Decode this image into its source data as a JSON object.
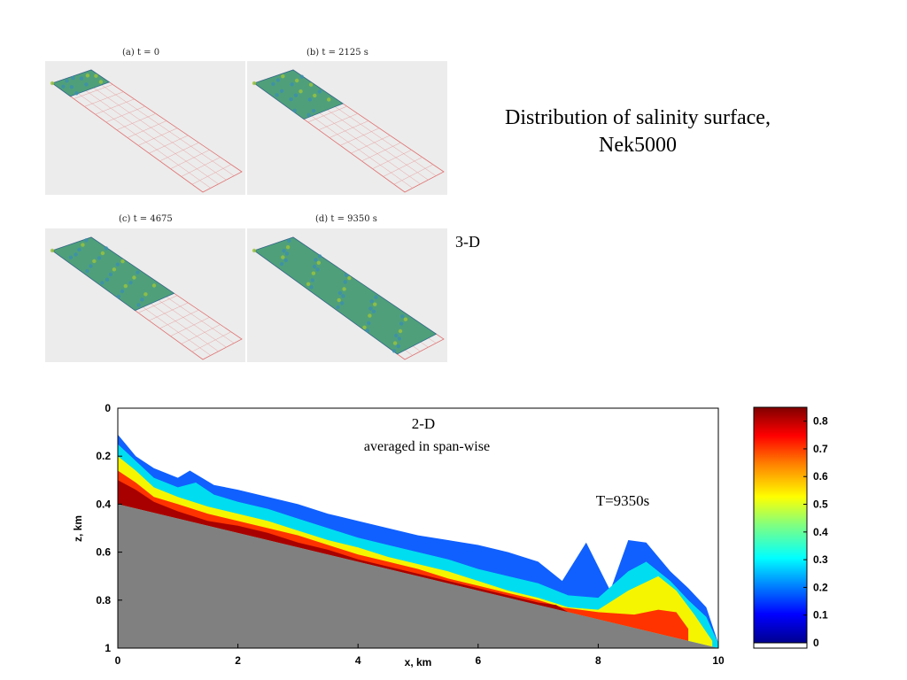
{
  "slide": {
    "title_line1": "Distribution of salinity surface,",
    "title_line2": "Nek5000",
    "label_3d": "3-D"
  },
  "panels": [
    {
      "label": "(a) t = 0",
      "fill_fraction": 0.12
    },
    {
      "label": "(b) t = 2125 s",
      "fill_fraction": 0.33
    },
    {
      "label": "(c) t = 4675",
      "fill_fraction": 0.55
    },
    {
      "label": "(d) t = 9350 s",
      "fill_fraction": 0.95
    }
  ],
  "chart_data": {
    "type": "heatmap",
    "title": "2-D",
    "subtitle": "averaged in span-wise",
    "annotation": "T=9350s",
    "xlabel": "x, km",
    "ylabel": "z, km",
    "xlim": [
      0,
      10
    ],
    "ylim": [
      0,
      1
    ],
    "y_inverted": true,
    "x_ticks": [
      "0",
      "2",
      "4",
      "6",
      "8",
      "10"
    ],
    "y_ticks": [
      "0",
      "0.2",
      "0.4",
      "0.6",
      "0.8",
      "1"
    ],
    "colorbar": {
      "range": [
        0,
        0.85
      ],
      "ticks": [
        "0",
        "0.1",
        "0.2",
        "0.3",
        "0.4",
        "0.5",
        "0.6",
        "0.7",
        "0.8"
      ],
      "colormap": "jet"
    },
    "bottom_slope": {
      "x": [
        0,
        10
      ],
      "z": [
        0.4,
        1.0
      ],
      "color": "#808080"
    },
    "contours": [
      {
        "level": 0.05,
        "color": "#1060ff",
        "top_x": [
          0,
          0.3,
          0.6,
          1.0,
          1.2,
          1.6,
          2.0,
          2.5,
          3.0,
          3.5,
          4.0,
          4.5,
          5.0,
          5.5,
          6.0,
          6.5,
          7.0,
          7.4,
          7.8,
          8.2,
          8.5,
          8.8,
          9.2,
          9.5,
          9.8,
          10.0
        ],
        "top_z": [
          0.11,
          0.2,
          0.25,
          0.29,
          0.26,
          0.32,
          0.34,
          0.37,
          0.4,
          0.44,
          0.47,
          0.5,
          0.53,
          0.55,
          0.57,
          0.6,
          0.64,
          0.72,
          0.56,
          0.76,
          0.55,
          0.56,
          0.68,
          0.75,
          0.83,
          0.98
        ]
      },
      {
        "level": 0.3,
        "color": "#00ddf0",
        "top_x": [
          0,
          0.3,
          0.6,
          1.0,
          1.3,
          1.6,
          2.0,
          2.5,
          3.0,
          3.5,
          4.0,
          4.5,
          5.0,
          5.5,
          6.0,
          6.5,
          7.0,
          7.5,
          8.0,
          8.5,
          8.8,
          9.2,
          9.5,
          9.8,
          10.0
        ],
        "top_z": [
          0.15,
          0.22,
          0.29,
          0.33,
          0.31,
          0.36,
          0.39,
          0.42,
          0.46,
          0.5,
          0.54,
          0.57,
          0.6,
          0.63,
          0.67,
          0.7,
          0.73,
          0.78,
          0.79,
          0.68,
          0.64,
          0.72,
          0.8,
          0.87,
          0.98
        ]
      },
      {
        "level": 0.5,
        "color": "#f5f500",
        "top_x": [
          0,
          0.3,
          0.6,
          1.0,
          1.5,
          2.0,
          2.5,
          3.0,
          3.5,
          4.0,
          4.5,
          5.0,
          5.5,
          6.0,
          6.5,
          7.0,
          7.5,
          8.0,
          8.5,
          9.0,
          9.3,
          9.6,
          9.9
        ],
        "top_z": [
          0.2,
          0.26,
          0.33,
          0.37,
          0.41,
          0.44,
          0.47,
          0.51,
          0.55,
          0.58,
          0.62,
          0.65,
          0.68,
          0.72,
          0.76,
          0.79,
          0.83,
          0.84,
          0.76,
          0.7,
          0.76,
          0.86,
          0.97
        ]
      },
      {
        "level": 0.65,
        "color": "#ff3300",
        "top_x": [
          0,
          0.3,
          0.6,
          1.0,
          1.5,
          2.0,
          2.5,
          3.0,
          3.5,
          4.0,
          4.5,
          5.0,
          5.5,
          6.0,
          6.5,
          7.0,
          7.4,
          8.0,
          8.6,
          9.0,
          9.3,
          9.5
        ],
        "top_z": [
          0.26,
          0.31,
          0.37,
          0.4,
          0.44,
          0.47,
          0.5,
          0.53,
          0.57,
          0.61,
          0.64,
          0.67,
          0.71,
          0.74,
          0.77,
          0.8,
          0.83,
          0.85,
          0.86,
          0.84,
          0.85,
          0.92
        ]
      },
      {
        "level": 0.75,
        "color": "#a80000",
        "top_x": [
          0,
          0.3,
          0.6,
          1.0,
          1.5,
          2.0,
          2.5,
          3.0,
          3.5,
          4.0,
          4.5,
          5.0,
          5.5,
          6.0,
          6.5,
          7.0,
          7.3,
          7.5
        ],
        "top_z": [
          0.3,
          0.34,
          0.39,
          0.43,
          0.47,
          0.49,
          0.52,
          0.56,
          0.59,
          0.63,
          0.66,
          0.69,
          0.72,
          0.75,
          0.78,
          0.81,
          0.82,
          0.85
        ]
      }
    ]
  }
}
